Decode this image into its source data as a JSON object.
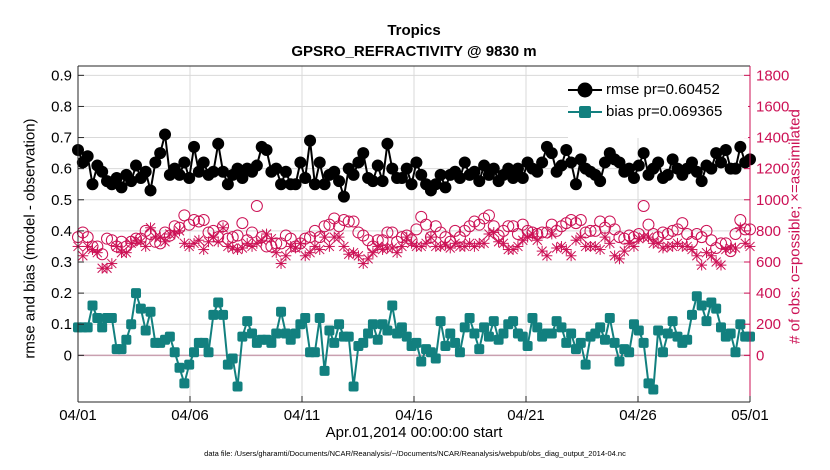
{
  "title": "Tropics",
  "subtitle": "GPSRO_REFRACTIVITY @ 9830 m",
  "xlabel": "Apr.01,2014 00:00:00 start",
  "ylabel_left": "rmse and bias (model - observation)",
  "ylabel_right": "# of obs: o=possible; ×=assimilated",
  "footer": "data file: /Users/gharamti/Documents/NCAR/Reanalysis/~/Documents/NCAR/Reanalysis/webpub/obs_diag_output_2014-04.nc",
  "legend": {
    "rmse_label": "rmse pr=0.60452",
    "bias_label": "bias pr=0.069365"
  },
  "colors": {
    "rmse": "#000000",
    "bias": "#12807f",
    "obs": "#cc1155",
    "zero_line": "#c9a0b0"
  },
  "chart_data": {
    "type": "line",
    "x_range": [
      0,
      30
    ],
    "x_ticks": [
      0,
      5,
      10,
      15,
      20,
      25,
      30
    ],
    "x_tick_labels": [
      "04/01",
      "04/06",
      "04/11",
      "04/16",
      "04/21",
      "04/26",
      "05/01"
    ],
    "ylim_left": [
      -0.15,
      0.93
    ],
    "y_ticks_left": [
      0,
      0.1,
      0.2,
      0.3,
      0.4,
      0.5,
      0.6,
      0.7,
      0.8,
      0.9
    ],
    "y_tick_labels_left": [
      "0",
      "0.1",
      "0.2",
      "0.3",
      "0.4",
      "0.5",
      "0.6",
      "0.7",
      "0.8",
      "0.9"
    ],
    "ylim_right": [
      -300,
      1860
    ],
    "y_ticks_right": [
      0,
      200,
      400,
      600,
      800,
      1000,
      1200,
      1400,
      1600,
      1800
    ],
    "y_tick_labels_right": [
      "0",
      "200",
      "400",
      "600",
      "800",
      "1000",
      "1200",
      "1400",
      "1600",
      "1800"
    ],
    "series": [
      {
        "name": "rmse pr=0.60452",
        "axis": "left",
        "values": [
          0.66,
          0.62,
          0.64,
          0.55,
          0.61,
          0.59,
          0.56,
          0.55,
          0.57,
          0.54,
          0.58,
          0.56,
          0.61,
          0.57,
          0.59,
          0.53,
          0.62,
          0.65,
          0.71,
          0.58,
          0.6,
          0.58,
          0.62,
          0.57,
          0.67,
          0.59,
          0.62,
          0.58,
          0.59,
          0.68,
          0.59,
          0.55,
          0.58,
          0.6,
          0.57,
          0.6,
          0.59,
          0.61,
          0.67,
          0.66,
          0.59,
          0.6,
          0.55,
          0.59,
          0.55,
          0.55,
          0.62,
          0.57,
          0.69,
          0.55,
          0.62,
          0.55,
          0.58,
          0.59,
          0.56,
          0.51,
          0.6,
          0.58,
          0.62,
          0.65,
          0.57,
          0.56,
          0.61,
          0.56,
          0.68,
          0.6,
          0.57,
          0.57,
          0.6,
          0.55,
          0.62,
          0.58,
          0.55,
          0.53,
          0.55,
          0.58,
          0.54,
          0.58,
          0.59,
          0.57,
          0.62,
          0.58,
          0.59,
          0.56,
          0.61,
          0.58,
          0.6,
          0.56,
          0.58,
          0.6,
          0.57,
          0.6,
          0.57,
          0.62,
          0.6,
          0.59,
          0.62,
          0.67,
          0.65,
          0.59,
          0.61,
          0.66,
          0.62,
          0.55,
          0.63,
          0.6,
          0.59,
          0.58,
          0.56,
          0.62,
          0.65,
          0.63,
          0.62,
          0.59,
          0.6,
          0.57,
          0.61,
          0.65,
          0.58,
          0.6,
          0.62,
          0.57,
          0.58,
          0.63,
          0.6,
          0.58,
          0.6,
          0.62,
          0.59,
          0.56,
          0.61,
          0.6,
          0.65,
          0.62,
          0.66,
          0.6,
          0.6,
          0.67,
          0.62,
          0.63
        ]
      },
      {
        "name": "bias pr=0.069365",
        "axis": "left",
        "values": [
          0.09,
          0.09,
          0.09,
          0.16,
          0.12,
          0.09,
          0.12,
          0.12,
          0.02,
          0.02,
          0.05,
          0.1,
          0.2,
          0.15,
          0.08,
          0.14,
          0.04,
          0.04,
          0.05,
          0.06,
          0.01,
          -0.04,
          -0.09,
          -0.03,
          0.01,
          0.04,
          0.04,
          0.01,
          0.13,
          0.17,
          0.13,
          -0.03,
          -0.01,
          -0.1,
          0.06,
          0.11,
          0.07,
          0.04,
          0.05,
          0.05,
          0.04,
          0.07,
          0.14,
          0.07,
          0.05,
          0.07,
          0.1,
          0.12,
          0.01,
          0.01,
          0.12,
          -0.05,
          0.08,
          0.04,
          0.1,
          0.06,
          0.06,
          -0.1,
          0.03,
          0.04,
          0.07,
          0.1,
          0.05,
          0.1,
          0.08,
          0.16,
          0.07,
          0.09,
          0.06,
          0.03,
          0.04,
          -0.02,
          0.02,
          0.01,
          -0.01,
          0.11,
          0.03,
          0.07,
          0.04,
          0.01,
          0.09,
          0.12,
          0.07,
          0.02,
          0.09,
          0.06,
          0.11,
          0.05,
          0.07,
          0.1,
          0.11,
          0.07,
          0.06,
          0.03,
          0.12,
          0.09,
          0.06,
          0.07,
          0.07,
          0.11,
          0.09,
          0.04,
          0.07,
          0.02,
          0.04,
          -0.03,
          0.06,
          0.07,
          0.09,
          0.05,
          0.12,
          0.04,
          -0.02,
          0.02,
          0.01,
          0.1,
          0.08,
          0.04,
          -0.09,
          -0.11,
          0.08,
          0.01,
          0.07,
          0.11,
          0.06,
          0.04,
          0.05,
          0.13,
          0.19,
          0.16,
          0.11,
          0.17,
          0.15,
          0.09,
          0.06,
          0.07,
          0.01,
          0.1,
          0.06,
          0.06
        ]
      },
      {
        "name": "possible obs (o)",
        "axis": "right",
        "values": [
          760,
          790,
          760,
          700,
          700,
          650,
          750,
          740,
          700,
          730,
          700,
          730,
          750,
          750,
          800,
          780,
          730,
          720,
          790,
          770,
          830,
          820,
          900,
          840,
          870,
          860,
          870,
          790,
          800,
          760,
          830,
          750,
          760,
          770,
          850,
          740,
          790,
          960,
          760,
          700,
          700,
          720,
          720,
          770,
          750,
          700,
          720,
          750,
          760,
          800,
          760,
          830,
          840,
          880,
          830,
          870,
          860,
          860,
          790,
          770,
          740,
          700,
          740,
          740,
          790,
          790,
          730,
          760,
          770,
          740,
          810,
          890,
          840,
          760,
          830,
          790,
          760,
          730,
          800,
          760,
          800,
          830,
          860,
          840,
          880,
          900,
          830,
          770,
          800,
          830,
          830,
          780,
          840,
          800,
          790,
          780,
          790,
          790,
          840,
          800,
          830,
          850,
          870,
          850,
          870,
          790,
          800,
          800,
          860,
          820,
          860,
          810,
          760,
          750,
          770,
          760,
          780,
          960,
          840,
          780,
          760,
          790,
          780,
          800,
          810,
          850,
          780,
          730,
          780,
          760,
          800,
          740,
          690,
          720,
          720,
          670,
          780,
          870,
          810,
          810
        ]
      },
      {
        "name": "assimilated obs (×)",
        "axis": "right",
        "values": [
          700,
          640,
          700,
          680,
          660,
          560,
          560,
          590,
          700,
          660,
          660,
          720,
          740,
          730,
          700,
          820,
          760,
          760,
          730,
          780,
          780,
          800,
          720,
          700,
          720,
          740,
          680,
          730,
          760,
          730,
          820,
          700,
          690,
          680,
          690,
          720,
          700,
          720,
          740,
          780,
          750,
          660,
          590,
          640,
          700,
          690,
          720,
          640,
          660,
          700,
          680,
          760,
          700,
          760,
          760,
          700,
          650,
          660,
          640,
          590,
          620,
          660,
          700,
          680,
          690,
          690,
          660,
          700,
          760,
          720,
          700,
          700,
          720,
          760,
          700,
          700,
          710,
          690,
          720,
          700,
          700,
          720,
          700,
          720,
          720,
          780,
          790,
          730,
          720,
          680,
          680,
          700,
          740,
          760,
          780,
          740,
          670,
          640,
          780,
          690,
          700,
          680,
          640,
          740,
          760,
          700,
          700,
          700,
          680,
          760,
          720,
          640,
          620,
          670,
          720,
          700,
          750,
          760,
          760,
          720,
          720,
          690,
          700,
          700,
          720,
          700,
          700,
          680,
          640,
          580,
          660,
          640,
          600,
          580,
          680,
          690,
          690,
          820,
          720,
          700
        ]
      }
    ]
  }
}
